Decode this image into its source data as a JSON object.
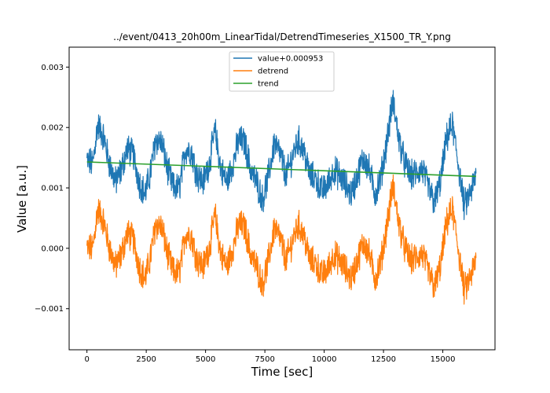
{
  "chart_data": {
    "type": "line",
    "title": "../event/0413_20h00m_LinearTidal/DetrendTimeseries_X1500_TR_Y.png",
    "xlabel": "Time [sec]",
    "ylabel": "Value [a.u.]",
    "xlim": [
      -750,
      17200
    ],
    "ylim": [
      -0.00168,
      0.00333
    ],
    "x_ticks": [
      0,
      2500,
      5000,
      7500,
      10000,
      12500,
      15000
    ],
    "x_tick_labels": [
      "0",
      "2500",
      "5000",
      "7500",
      "10000",
      "12500",
      "15000"
    ],
    "y_ticks": [
      -0.001,
      0.0,
      0.001,
      0.002,
      0.003
    ],
    "y_tick_labels": [
      "−0.001",
      "0.000",
      "0.001",
      "0.002",
      "0.003"
    ],
    "grid": false,
    "legend_position": "upper center",
    "series": [
      {
        "name": "value+0.000953",
        "color": "#1f77b4",
        "x": [
          0,
          250,
          450,
          700,
          950,
          1200,
          1450,
          1700,
          1950,
          2200,
          2450,
          2650,
          2900,
          3150,
          3400,
          3650,
          3900,
          4150,
          4400,
          4650,
          4900,
          5150,
          5400,
          5650,
          5900,
          6150,
          6400,
          6650,
          6900,
          7150,
          7400,
          7650,
          7900,
          8150,
          8400,
          8650,
          8900,
          9150,
          9400,
          9650,
          9900,
          10150,
          10400,
          10650,
          10900,
          11150,
          11400,
          11650,
          11900,
          12150,
          12400,
          12650,
          12900,
          13150,
          13400,
          13650,
          13900,
          14150,
          14400,
          14650,
          14900,
          15150,
          15400,
          15650,
          15900,
          16150,
          16400
        ],
        "y": [
          0.00145,
          0.0014,
          0.00205,
          0.00185,
          0.0014,
          0.0011,
          0.0013,
          0.00165,
          0.00155,
          0.0011,
          0.0009,
          0.0012,
          0.0018,
          0.00175,
          0.0013,
          0.001,
          0.001,
          0.00165,
          0.0016,
          0.0012,
          0.0011,
          0.0014,
          0.00195,
          0.0013,
          0.0011,
          0.0014,
          0.0018,
          0.00175,
          0.0013,
          0.0011,
          0.0008,
          0.0012,
          0.00175,
          0.00155,
          0.0012,
          0.0015,
          0.0018,
          0.0016,
          0.0012,
          0.00115,
          0.00095,
          0.00105,
          0.0013,
          0.0012,
          0.00105,
          0.0009,
          0.0012,
          0.0015,
          0.0013,
          0.0009,
          0.0012,
          0.0018,
          0.00245,
          0.0018,
          0.0014,
          0.0012,
          0.00125,
          0.0013,
          0.001,
          0.00075,
          0.0011,
          0.0018,
          0.00205,
          0.0014,
          0.0007,
          0.0009,
          0.0012
        ],
        "noise_amplitude": 0.00022
      },
      {
        "name": "detrend",
        "color": "#ff7f0e",
        "x": [
          0,
          250,
          450,
          700,
          950,
          1200,
          1450,
          1700,
          1950,
          2200,
          2450,
          2650,
          2900,
          3150,
          3400,
          3650,
          3900,
          4150,
          4400,
          4650,
          4900,
          5150,
          5400,
          5650,
          5900,
          6150,
          6400,
          6650,
          6900,
          7150,
          7400,
          7650,
          7900,
          8150,
          8400,
          8650,
          8900,
          9150,
          9400,
          9650,
          9900,
          10150,
          10400,
          10650,
          10900,
          11150,
          11400,
          11650,
          11900,
          12150,
          12400,
          12650,
          12900,
          13150,
          13400,
          13650,
          13900,
          14150,
          14400,
          14650,
          14900,
          15150,
          15400,
          15650,
          15900,
          16150,
          16400
        ],
        "y": [
          0.0,
          0.0,
          0.00065,
          0.00045,
          0.0,
          -0.0003,
          -0.0001,
          0.00025,
          0.00015,
          -0.0003,
          -0.0005,
          -0.0002,
          0.0004,
          0.00035,
          -0.0001,
          -0.0004,
          -0.0004,
          0.00025,
          0.0002,
          -0.0002,
          -0.0003,
          0.0,
          0.00055,
          -0.0001,
          -0.0003,
          0.0,
          0.0004,
          0.00035,
          -0.0001,
          -0.0003,
          -0.0006,
          -0.0002,
          0.00035,
          0.00015,
          -0.0002,
          0.0001,
          0.0004,
          0.0002,
          -0.0002,
          -0.00025,
          -0.00045,
          -0.00035,
          -0.0001,
          -0.0002,
          -0.00035,
          -0.0005,
          -0.0002,
          0.0001,
          -0.0001,
          -0.0005,
          -0.0002,
          0.0004,
          0.00105,
          0.0004,
          0.0,
          -0.0002,
          -0.00015,
          -0.0001,
          -0.0004,
          -0.00065,
          -0.0003,
          0.0004,
          0.00065,
          0.0,
          -0.0007,
          -0.0005,
          -0.0002
        ],
        "noise_amplitude": 0.00022
      },
      {
        "name": "trend",
        "color": "#2ca02c",
        "x": [
          0,
          16400
        ],
        "y": [
          0.00143,
          0.00119
        ]
      }
    ]
  }
}
